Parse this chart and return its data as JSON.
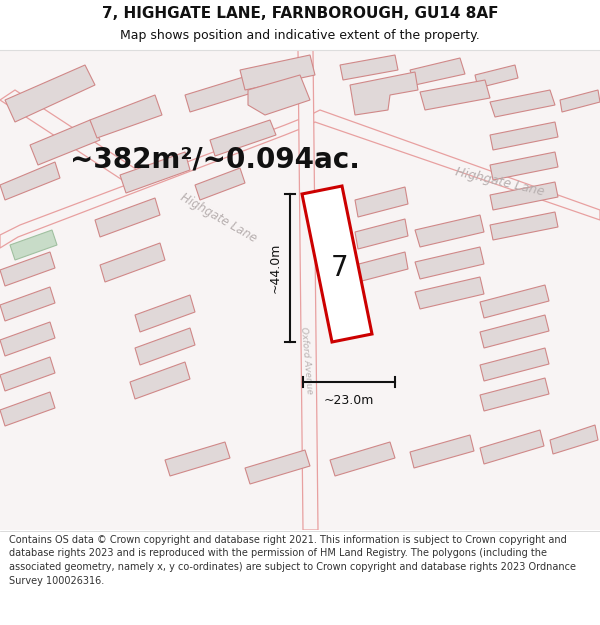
{
  "title_line1": "7, HIGHGATE LANE, FARNBOROUGH, GU14 8AF",
  "title_line2": "Map shows position and indicative extent of the property.",
  "area_text": "~382m²/~0.094ac.",
  "label_7": "7",
  "dim_vertical": "~44.0m",
  "dim_horizontal": "~23.0m",
  "road_label_ll": "Highgate Lane",
  "road_label_ur": "Highgate Lane",
  "road_label_v": "Oxford Avenue",
  "background_color": "#ffffff",
  "map_bg": "#f7f3f3",
  "footer_text": "Contains OS data © Crown copyright and database right 2021. This information is subject to Crown copyright and database rights 2023 and is reproduced with the permission of HM Land Registry. The polygons (including the associated geometry, namely x, y co-ordinates) are subject to Crown copyright and database rights 2023 Ordnance Survey 100026316.",
  "highlight_color": "#cc0000",
  "road_line_color": "#e8a0a0",
  "building_fill": "#e0d8d8",
  "building_edge": "#d08888",
  "dim_color": "#111111",
  "title_fontsize": 11,
  "subtitle_fontsize": 9,
  "area_fontsize": 20,
  "label_fontsize": 20,
  "footer_fontsize": 7.0,
  "road_text_color": "#b8b0b0"
}
